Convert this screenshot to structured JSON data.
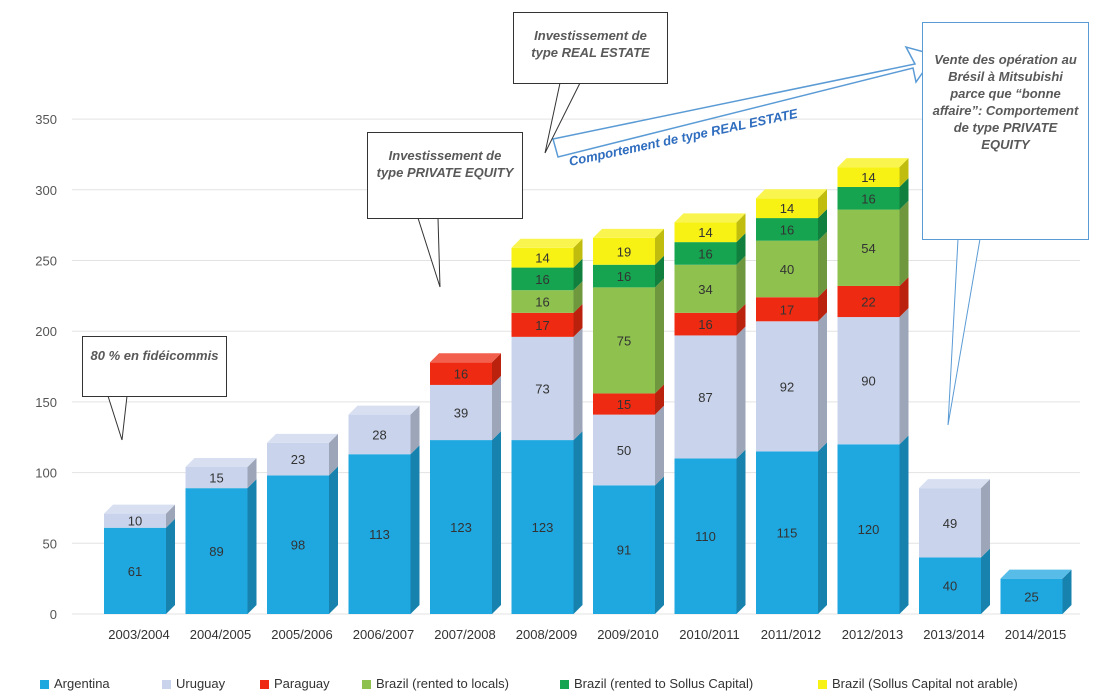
{
  "chart_data": {
    "type": "bar",
    "stacked": true,
    "categories": [
      "2003/2004",
      "2004/2005",
      "2005/2006",
      "2006/2007",
      "2007/2008",
      "2008/2009",
      "2009/2010",
      "2010/2011",
      "2011/2012",
      "2012/2013",
      "2013/2014",
      "2014/2015"
    ],
    "series": [
      {
        "name": "Argentina",
        "color": "#1fa7e0",
        "values": [
          61,
          89,
          98,
          113,
          123,
          123,
          91,
          110,
          115,
          120,
          40,
          25
        ]
      },
      {
        "name": "Uruguay",
        "color": "#c9d4ec",
        "values": [
          10,
          15,
          23,
          28,
          39,
          73,
          50,
          87,
          92,
          90,
          49,
          null
        ]
      },
      {
        "name": "Paraguay",
        "color": "#ee2b12",
        "values": [
          null,
          null,
          null,
          null,
          16,
          17,
          15,
          16,
          17,
          22,
          null,
          null
        ]
      },
      {
        "name": "Brazil (rented to locals)",
        "color": "#8ec14e",
        "values": [
          null,
          null,
          null,
          null,
          null,
          16,
          75,
          34,
          40,
          54,
          null,
          null
        ]
      },
      {
        "name": "Brazil (rented to Sollus Capital)",
        "color": "#16a450",
        "values": [
          null,
          null,
          null,
          null,
          null,
          16,
          16,
          16,
          16,
          16,
          null,
          null
        ]
      },
      {
        "name": "Brazil (Sollus Capital not arable)",
        "color": "#f7f213",
        "values": [
          null,
          null,
          null,
          null,
          null,
          14,
          19,
          14,
          14,
          14,
          null,
          null
        ]
      }
    ],
    "ylim": [
      0,
      350
    ],
    "yticks": [
      0,
      50,
      100,
      150,
      200,
      250,
      300,
      350
    ],
    "grid": true,
    "legend_position": "bottom",
    "title": "",
    "xlabel": "",
    "ylabel": ""
  },
  "annotations": {
    "fideicommis": "80 % en fidéicommis",
    "private_equity_1": "Investissement de type PRIVATE EQUITY",
    "real_estate_1": "Investissement de type REAL ESTATE",
    "comportement_real_estate": "Comportement de type REAL ESTATE",
    "vente_bresil": "Vente des opération au Brésil à Mitsubishi parce que “bonne affaire”: Comportement de type PRIVATE EQUITY"
  }
}
